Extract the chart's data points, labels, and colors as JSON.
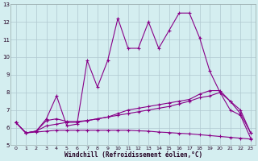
{
  "title": "",
  "xlabel": "Windchill (Refroidissement éolien,°C)",
  "bg_color": "#d4eef0",
  "line_color": "#880088",
  "grid_color": "#b0c8d0",
  "xlim": [
    -0.5,
    23.5
  ],
  "ylim": [
    5,
    13
  ],
  "xticks": [
    0,
    1,
    2,
    3,
    4,
    5,
    6,
    7,
    8,
    9,
    10,
    11,
    12,
    13,
    14,
    15,
    16,
    17,
    18,
    19,
    20,
    21,
    22,
    23
  ],
  "yticks": [
    5,
    6,
    7,
    8,
    9,
    10,
    11,
    12,
    13
  ],
  "line1_x": [
    0,
    1,
    2,
    3,
    4,
    5,
    6,
    7,
    8,
    9,
    10,
    11,
    12,
    13,
    14,
    15,
    16,
    17,
    18,
    19,
    20,
    21,
    22,
    23
  ],
  "line1_y": [
    6.3,
    5.7,
    5.8,
    6.5,
    7.8,
    6.1,
    6.2,
    9.8,
    8.3,
    9.8,
    12.2,
    10.5,
    10.5,
    12.0,
    10.5,
    11.5,
    12.5,
    12.5,
    11.1,
    9.2,
    8.0,
    7.0,
    6.7,
    5.4
  ],
  "line2_x": [
    0,
    1,
    2,
    3,
    4,
    5,
    6,
    7,
    8,
    9,
    10,
    11,
    12,
    13,
    14,
    15,
    16,
    17,
    18,
    19,
    20,
    21,
    22,
    23
  ],
  "line2_y": [
    6.3,
    5.7,
    5.8,
    6.4,
    6.5,
    6.35,
    6.35,
    6.4,
    6.5,
    6.6,
    6.7,
    6.8,
    6.9,
    7.0,
    7.1,
    7.2,
    7.35,
    7.5,
    7.7,
    7.8,
    8.0,
    7.5,
    6.8,
    5.7
  ],
  "line3_x": [
    0,
    1,
    2,
    3,
    4,
    5,
    6,
    7,
    8,
    9,
    10,
    11,
    12,
    13,
    14,
    15,
    16,
    17,
    18,
    19,
    20,
    21,
    22,
    23
  ],
  "line3_y": [
    6.3,
    5.7,
    5.75,
    5.8,
    5.85,
    5.85,
    5.85,
    5.85,
    5.85,
    5.85,
    5.85,
    5.85,
    5.82,
    5.8,
    5.75,
    5.72,
    5.68,
    5.65,
    5.6,
    5.55,
    5.5,
    5.45,
    5.4,
    5.35
  ],
  "line4_x": [
    0,
    1,
    2,
    3,
    4,
    5,
    6,
    7,
    8,
    9,
    10,
    11,
    12,
    13,
    14,
    15,
    16,
    17,
    18,
    19,
    20,
    21,
    22,
    23
  ],
  "line4_y": [
    6.3,
    5.7,
    5.8,
    6.1,
    6.2,
    6.3,
    6.3,
    6.4,
    6.5,
    6.6,
    6.8,
    7.0,
    7.1,
    7.2,
    7.3,
    7.4,
    7.5,
    7.6,
    7.9,
    8.1,
    8.1,
    7.5,
    7.0,
    5.7
  ]
}
